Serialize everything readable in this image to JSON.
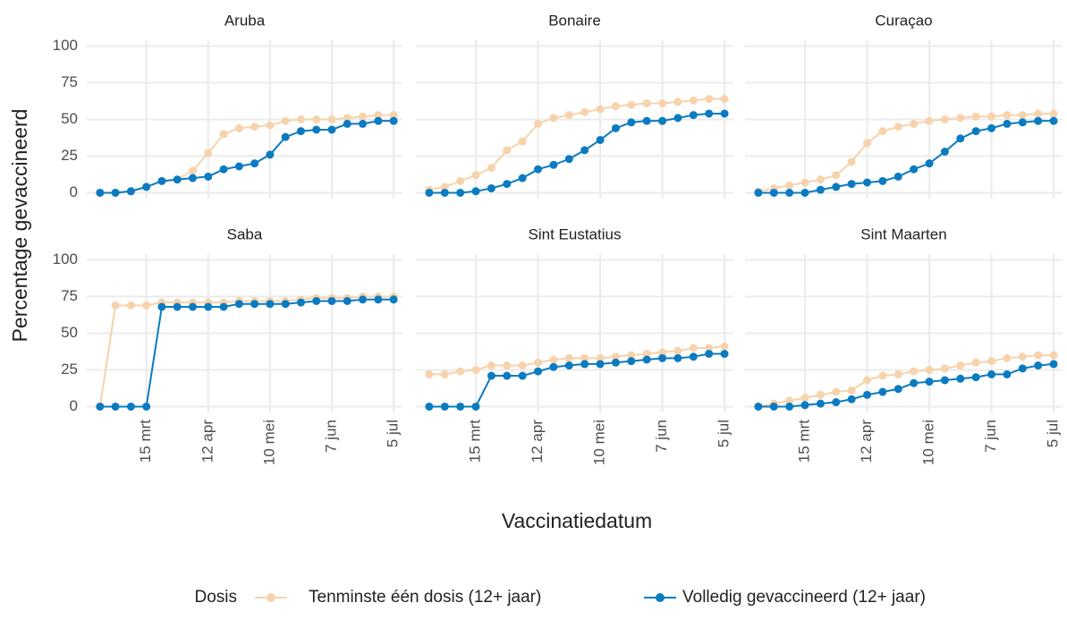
{
  "y_label": "Percentage gevaccineerd",
  "x_label": "Vaccinatiedatum",
  "legend_title": "Dosis",
  "chart_data": [
    {
      "type": "line",
      "title": "Aruba",
      "x": [
        53,
        60,
        67,
        74,
        81,
        88,
        95,
        102,
        109,
        116,
        123,
        130,
        137,
        144,
        151,
        158,
        165,
        172,
        179,
        186
      ],
      "xlim": [
        47,
        190
      ],
      "xticks": [
        {
          "value": 74,
          "label": "15 mrt"
        },
        {
          "value": 102,
          "label": "12 apr"
        },
        {
          "value": 130,
          "label": "10 mei"
        },
        {
          "value": 158,
          "label": "7 jun"
        },
        {
          "value": 186,
          "label": "5 jul"
        }
      ],
      "ylim": [
        -4,
        104
      ],
      "yticks": [
        0,
        25,
        50,
        75,
        100
      ],
      "grid": true,
      "series": [
        {
          "name": "Tenminste één dosis (12+ jaar)",
          "color": "#f6d3ac",
          "values": [
            0,
            0,
            1,
            4,
            8,
            9,
            15,
            27,
            40,
            44,
            45,
            46,
            49,
            50,
            50,
            50,
            51,
            52,
            53,
            53
          ]
        },
        {
          "name": "Volledig gevaccineerd (12+ jaar)",
          "color": "#0b7bc1",
          "values": [
            0,
            0,
            1,
            4,
            8,
            9,
            10,
            11,
            16,
            18,
            20,
            26,
            38,
            42,
            43,
            43,
            47,
            47,
            49,
            49
          ]
        }
      ]
    },
    {
      "type": "line",
      "title": "Bonaire",
      "x": [
        53,
        60,
        67,
        74,
        81,
        88,
        95,
        102,
        109,
        116,
        123,
        130,
        137,
        144,
        151,
        158,
        165,
        172,
        179,
        186
      ],
      "xlim": [
        47,
        190
      ],
      "xticks": [
        {
          "value": 74,
          "label": "15 mrt"
        },
        {
          "value": 102,
          "label": "12 apr"
        },
        {
          "value": 130,
          "label": "10 mei"
        },
        {
          "value": 158,
          "label": "7 jun"
        },
        {
          "value": 186,
          "label": "5 jul"
        }
      ],
      "ylim": [
        -4,
        104
      ],
      "yticks": [
        0,
        25,
        50,
        75,
        100
      ],
      "grid": true,
      "series": [
        {
          "name": "Tenminste één dosis (12+ jaar)",
          "color": "#f6d3ac",
          "values": [
            2,
            4,
            8,
            12,
            17,
            29,
            35,
            47,
            51,
            53,
            55,
            57,
            59,
            60,
            61,
            61,
            62,
            63,
            64,
            64
          ]
        },
        {
          "name": "Volledig gevaccineerd (12+ jaar)",
          "color": "#0b7bc1",
          "values": [
            0,
            0,
            0,
            1,
            3,
            6,
            10,
            16,
            19,
            23,
            29,
            36,
            44,
            48,
            49,
            49,
            51,
            53,
            54,
            54
          ]
        }
      ]
    },
    {
      "type": "line",
      "title": "Curaçao",
      "x": [
        53,
        60,
        67,
        74,
        81,
        88,
        95,
        102,
        109,
        116,
        123,
        130,
        137,
        144,
        151,
        158,
        165,
        172,
        179,
        186
      ],
      "xlim": [
        47,
        190
      ],
      "xticks": [
        {
          "value": 74,
          "label": "15 mrt"
        },
        {
          "value": 102,
          "label": "12 apr"
        },
        {
          "value": 130,
          "label": "10 mei"
        },
        {
          "value": 158,
          "label": "7 jun"
        },
        {
          "value": 186,
          "label": "5 jul"
        }
      ],
      "ylim": [
        -4,
        104
      ],
      "yticks": [
        0,
        25,
        50,
        75,
        100
      ],
      "grid": true,
      "series": [
        {
          "name": "Tenminste één dosis (12+ jaar)",
          "color": "#f6d3ac",
          "values": [
            1,
            3,
            5,
            7,
            9,
            12,
            21,
            34,
            42,
            45,
            47,
            49,
            50,
            51,
            52,
            52,
            53,
            53,
            54,
            54
          ]
        },
        {
          "name": "Volledig gevaccineerd (12+ jaar)",
          "color": "#0b7bc1",
          "values": [
            0,
            0,
            0,
            0,
            2,
            4,
            6,
            7,
            8,
            11,
            16,
            20,
            28,
            37,
            42,
            44,
            47,
            48,
            49,
            49
          ]
        }
      ]
    },
    {
      "type": "line",
      "title": "Saba",
      "x": [
        53,
        60,
        67,
        74,
        81,
        88,
        95,
        102,
        109,
        116,
        123,
        130,
        137,
        144,
        151,
        158,
        165,
        172,
        179,
        186
      ],
      "xlim": [
        47,
        190
      ],
      "xticks": [
        {
          "value": 74,
          "label": "15 mrt"
        },
        {
          "value": 102,
          "label": "12 apr"
        },
        {
          "value": 130,
          "label": "10 mei"
        },
        {
          "value": 158,
          "label": "7 jun"
        },
        {
          "value": 186,
          "label": "5 jul"
        }
      ],
      "ylim": [
        -4,
        104
      ],
      "yticks": [
        0,
        25,
        50,
        75,
        100
      ],
      "grid": true,
      "series": [
        {
          "name": "Tenminste één dosis (12+ jaar)",
          "color": "#f6d3ac",
          "values": [
            0,
            69,
            69,
            69,
            71,
            71,
            71,
            71,
            71,
            72,
            72,
            72,
            72,
            73,
            74,
            74,
            74,
            75,
            75,
            75
          ]
        },
        {
          "name": "Volledig gevaccineerd (12+ jaar)",
          "color": "#0b7bc1",
          "values": [
            0,
            0,
            0,
            0,
            68,
            68,
            68,
            68,
            68,
            70,
            70,
            70,
            70,
            71,
            72,
            72,
            72,
            73,
            73,
            73
          ]
        }
      ]
    },
    {
      "type": "line",
      "title": "Sint Eustatius",
      "x": [
        53,
        60,
        67,
        74,
        81,
        88,
        95,
        102,
        109,
        116,
        123,
        130,
        137,
        144,
        151,
        158,
        165,
        172,
        179,
        186
      ],
      "xlim": [
        47,
        190
      ],
      "xticks": [
        {
          "value": 74,
          "label": "15 mrt"
        },
        {
          "value": 102,
          "label": "12 apr"
        },
        {
          "value": 130,
          "label": "10 mei"
        },
        {
          "value": 158,
          "label": "7 jun"
        },
        {
          "value": 186,
          "label": "5 jul"
        }
      ],
      "ylim": [
        -4,
        104
      ],
      "yticks": [
        0,
        25,
        50,
        75,
        100
      ],
      "grid": true,
      "series": [
        {
          "name": "Tenminste één dosis (12+ jaar)",
          "color": "#f6d3ac",
          "values": [
            22,
            22,
            24,
            25,
            28,
            28,
            28,
            30,
            32,
            33,
            33,
            33,
            34,
            35,
            36,
            37,
            38,
            40,
            40,
            41
          ]
        },
        {
          "name": "Volledig gevaccineerd (12+ jaar)",
          "color": "#0b7bc1",
          "values": [
            0,
            0,
            0,
            0,
            21,
            21,
            21,
            24,
            27,
            28,
            29,
            29,
            30,
            31,
            32,
            33,
            33,
            34,
            36,
            36
          ]
        }
      ]
    },
    {
      "type": "line",
      "title": "Sint Maarten",
      "x": [
        53,
        60,
        67,
        74,
        81,
        88,
        95,
        102,
        109,
        116,
        123,
        130,
        137,
        144,
        151,
        158,
        165,
        172,
        179,
        186
      ],
      "xlim": [
        47,
        190
      ],
      "xticks": [
        {
          "value": 74,
          "label": "15 mrt"
        },
        {
          "value": 102,
          "label": "12 apr"
        },
        {
          "value": 130,
          "label": "10 mei"
        },
        {
          "value": 158,
          "label": "7 jun"
        },
        {
          "value": 186,
          "label": "5 jul"
        }
      ],
      "ylim": [
        -4,
        104
      ],
      "yticks": [
        0,
        25,
        50,
        75,
        100
      ],
      "grid": true,
      "series": [
        {
          "name": "Tenminste één dosis (12+ jaar)",
          "color": "#f6d3ac",
          "values": [
            0,
            2,
            4,
            6,
            8,
            10,
            11,
            18,
            21,
            22,
            24,
            25,
            26,
            28,
            30,
            31,
            33,
            34,
            35,
            35
          ]
        },
        {
          "name": "Volledig gevaccineerd (12+ jaar)",
          "color": "#0b7bc1",
          "values": [
            0,
            0,
            0,
            1,
            2,
            3,
            5,
            8,
            10,
            12,
            16,
            17,
            18,
            19,
            20,
            22,
            22,
            26,
            28,
            29
          ]
        }
      ]
    }
  ]
}
